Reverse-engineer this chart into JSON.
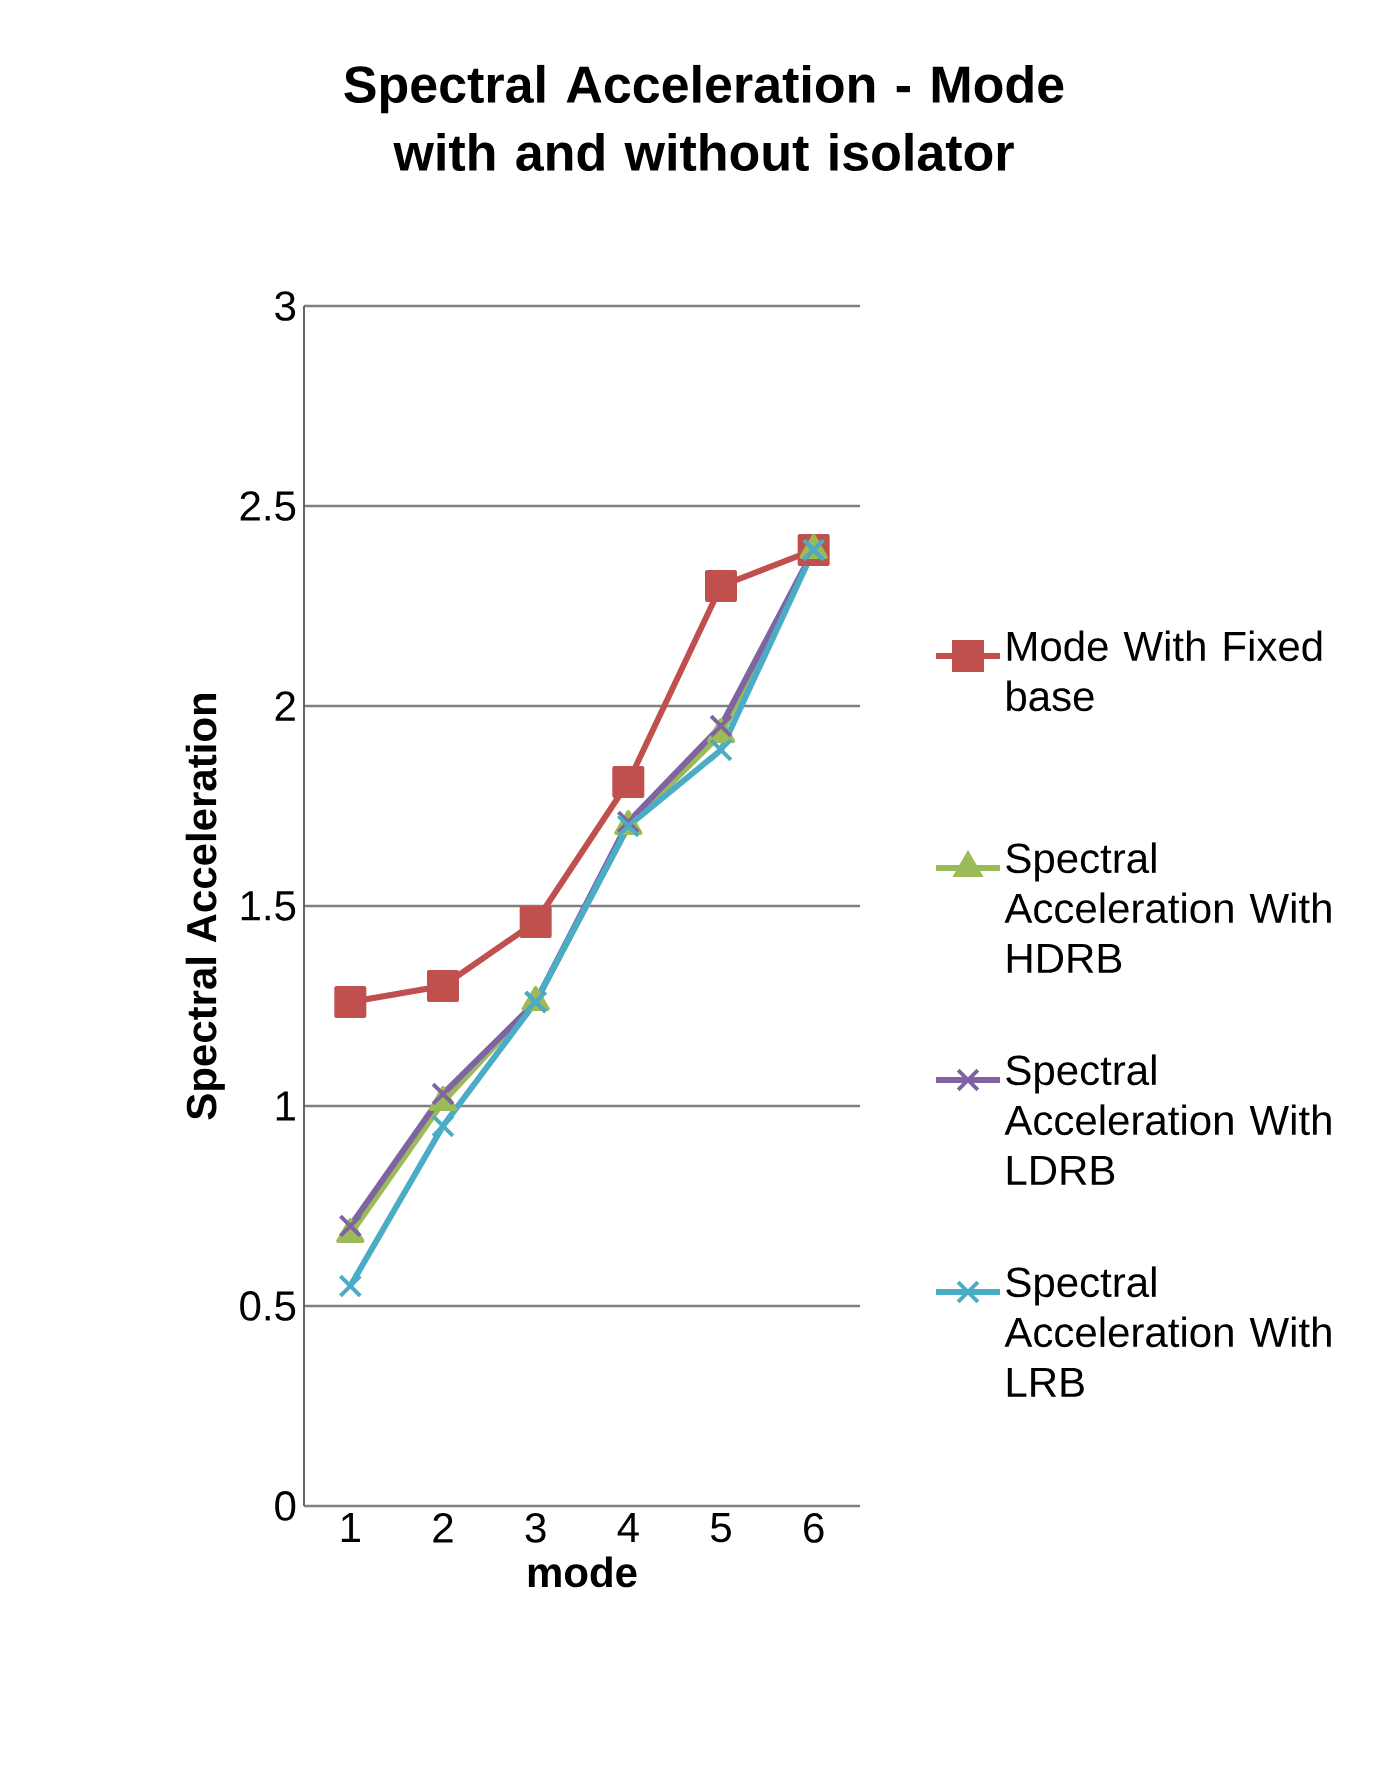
{
  "chart_data": {
    "type": "line",
    "title": "Spectral Acceleration - Mode with and without isolator",
    "xlabel": "mode",
    "ylabel": "Spectral Acceleration",
    "categories": [
      "1",
      "2",
      "3",
      "4",
      "5",
      "6"
    ],
    "series": [
      {
        "name": "Mode With Fixed base",
        "color": "#c0504d",
        "marker": "square",
        "values": [
          1.26,
          1.3,
          1.46,
          1.81,
          2.3,
          2.39
        ]
      },
      {
        "name": "Spectral Acceleration With HDRB",
        "color": "#9bbb59",
        "marker": "triangle",
        "values": [
          0.68,
          1.01,
          1.26,
          1.7,
          1.93,
          2.39
        ]
      },
      {
        "name": "Spectral Acceleration With LDRB",
        "color": "#8064a2",
        "marker": "cross",
        "values": [
          0.7,
          1.03,
          1.26,
          1.71,
          1.95,
          2.39
        ]
      },
      {
        "name": "Spectral Acceleration With LRB",
        "color": "#4bacc6",
        "marker": "cross",
        "values": [
          0.55,
          0.95,
          1.26,
          1.7,
          1.89,
          2.39
        ]
      }
    ],
    "ylim": [
      0,
      3
    ],
    "yticks": [
      0,
      0.5,
      1,
      1.5,
      2,
      2.5,
      3
    ],
    "grid": "y",
    "legend": "right"
  }
}
